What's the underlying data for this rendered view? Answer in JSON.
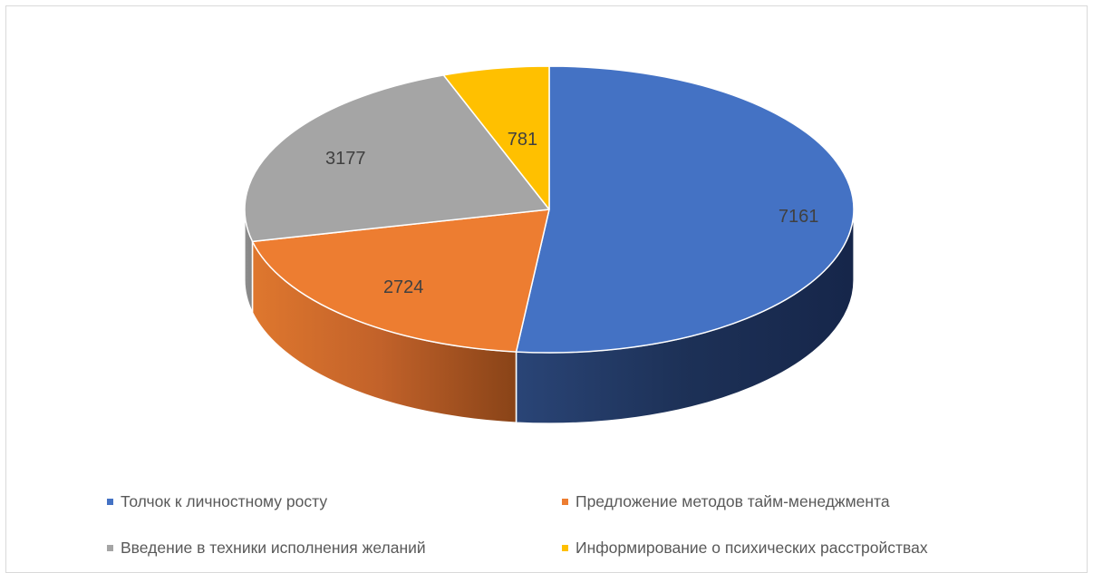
{
  "chart_data": {
    "type": "pie",
    "variant": "3d",
    "categories": [
      "Толчок к личностному росту",
      "Предложение методов тайм-менеджмента",
      "Введение в техники исполнения желаний",
      "Информирование о психических расстройствах"
    ],
    "values": [
      7161,
      2724,
      3177,
      781
    ],
    "data_labels": [
      "7161",
      "2724",
      "3177",
      "781"
    ],
    "colors": [
      "#4472C4",
      "#ED7D31",
      "#A5A5A5",
      "#FFC000"
    ],
    "legend_position": "bottom"
  }
}
